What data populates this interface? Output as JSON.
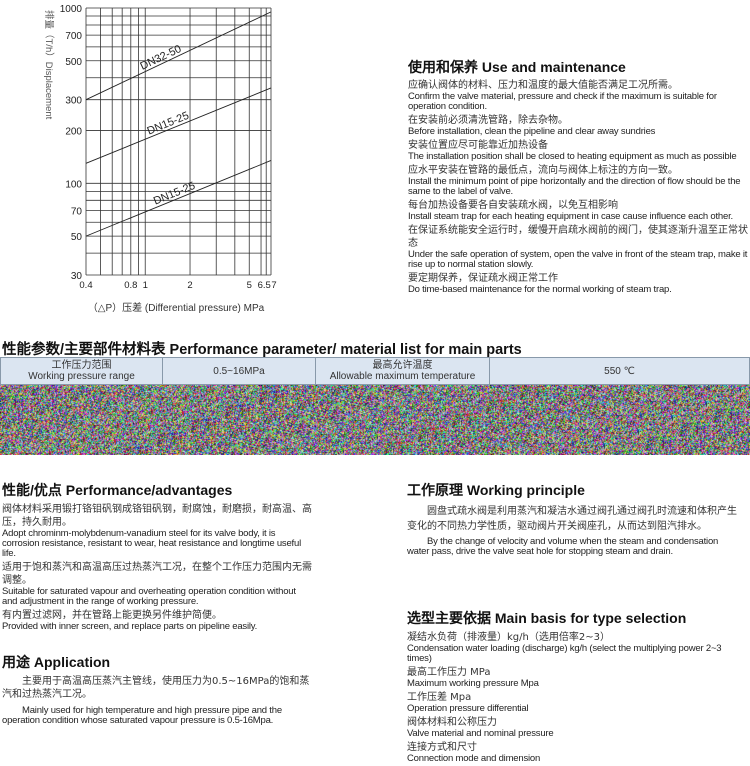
{
  "chart_data": {
    "type": "line",
    "xlabel": "（△P）压差 (Differential pressure) MPa",
    "ylabel": "排量（T/h）Displacement",
    "xscale": "log",
    "yscale": "log",
    "xlim": [
      0.4,
      7
    ],
    "ylim": [
      30,
      1000
    ],
    "grid": true,
    "x_ticks": [
      "0.4",
      "0.8",
      "1",
      "2",
      "5",
      "6.5",
      "7"
    ],
    "x_tick_values": [
      0.4,
      0.8,
      1,
      2,
      5,
      6.5,
      7
    ],
    "y_ticks": [
      "1000",
      "700",
      "500",
      "300",
      "200",
      "100",
      "70",
      "50",
      "30"
    ],
    "y_tick_values": [
      1000,
      700,
      500,
      300,
      200,
      100,
      70,
      50,
      30
    ],
    "series": [
      {
        "name": "DN32-50",
        "x": [
          0.4,
          7
        ],
        "y": [
          300,
          950
        ]
      },
      {
        "name": "DN15-25",
        "x": [
          0.4,
          7
        ],
        "y": [
          130,
          350
        ]
      },
      {
        "name": "DN15-25",
        "x": [
          0.4,
          7
        ],
        "y": [
          50,
          135
        ]
      }
    ]
  },
  "use": {
    "title": "使用和保养  Use and maintenance",
    "items": [
      {
        "zh": "应确认阀体的材料、压力和温度的最大值能否满足工况所需。",
        "en": "Confirm the valve material, pressure and check if the maximum is suitable for operation condition."
      },
      {
        "zh": "在安装前必须清洗管路，除去杂物。",
        "en": "Before installation, clean the pipeline and clear away sundries"
      },
      {
        "zh": "安装位置应尽可能靠近加热设备",
        "en": "The installation position shall be closed to heating equipment as much as possible"
      },
      {
        "zh": "应水平安装在管路的最低点，流向与阀体上标注的方向一致。",
        "en": "Install the minimum point of pipe horizontally and the direction of flow should be the same to the label of valve."
      },
      {
        "zh": "每台加热设备要各自安装疏水阀，以免互相影响",
        "en": "Install steam trap for each heating equipment in case cause influence each other."
      },
      {
        "zh": "在保证系统能安全运行时，缓慢开启疏水阀前的阀门，使其逐渐升温至正常状态",
        "en": "Under the safe operation of system, open the valve in front of the steam trap, make it rise up to normal station slowly."
      },
      {
        "zh": "要定期保养，保证疏水阀正常工作",
        "en": "Do time-based maintenance for the normal working of steam trap."
      }
    ]
  },
  "params": {
    "title": "性能参数/主要部件材料表  Performance parameter/ material list for main parts",
    "cells": [
      {
        "zh": "工作压力范围",
        "en": "Working pressure range"
      },
      {
        "v": "0.5~16MPa"
      },
      {
        "zh": "最高允许温度",
        "en": "Allowable maximum temperature"
      },
      {
        "v": "550 ℃"
      }
    ]
  },
  "adv": {
    "title": "性能/优点  Performance/advantages",
    "items": [
      {
        "zh": "阀体材料采用锻打铬钼矾钢成铬钼矾钢，耐腐蚀，耐磨损，耐高温、高压，持久耐用。",
        "en": "Adopt chrominm-molybdenum-vanadium steel for its valve body, it is corrosion resistance, resistant to wear, heat resistance and longtime useful life."
      },
      {
        "zh": "适用于饱和蒸汽和高温高压过热蒸汽工况，在整个工作压力范围内无需调整。",
        "en": "Suitable for saturated vapour and overheating operation condition without and adjustment in the range of working pressure."
      },
      {
        "zh": "有内置过滤网，并在管路上能更换另件维护简便。",
        "en": "Provided with inner screen, and replace parts on pipeline easily."
      }
    ]
  },
  "app": {
    "title": "用途  Application",
    "zh": "主要用于高温高压蒸汽主管线，使用压力为0.5~16MPa的饱和蒸汽和过热蒸汽工况。",
    "en": "Mainly used for high temperature and high pressure pipe and the operation condition whose saturated vapour pressure is 0.5-16Mpa."
  },
  "work": {
    "title": "工作原理  Working principle",
    "zh": "圆盘式疏水阀是利用蒸汽和凝洁水通过阀孔通过阀孔时流速和体积产生变化的不同热力学性质，驱动阀片开关阀座孔，从而达到阻汽排水。",
    "en": "By the change of velocity and volume when the steam and condensation water pass, drive the valve seat hole for stopping steam and drain."
  },
  "sel": {
    "title": "选型主要依据  Main basis for type selection",
    "items": [
      {
        "zh": "凝结水负荷（排液量）kg/h（选用倍率2~3）",
        "en": "Condensation water loading (discharge) kg/h (select the multiplying power 2~3 times)"
      },
      {
        "zh": "最高工作压力  MPa",
        "en": "Maximum working pressure Mpa"
      },
      {
        "zh": "工作压差  Mpa",
        "en": "Operation pressure differential"
      },
      {
        "zh": "阀体材料和公称压力",
        "en": "Valve material and nominal pressure"
      },
      {
        "zh": "连接方式和尺寸",
        "en": "Connection mode and dimension"
      }
    ]
  }
}
